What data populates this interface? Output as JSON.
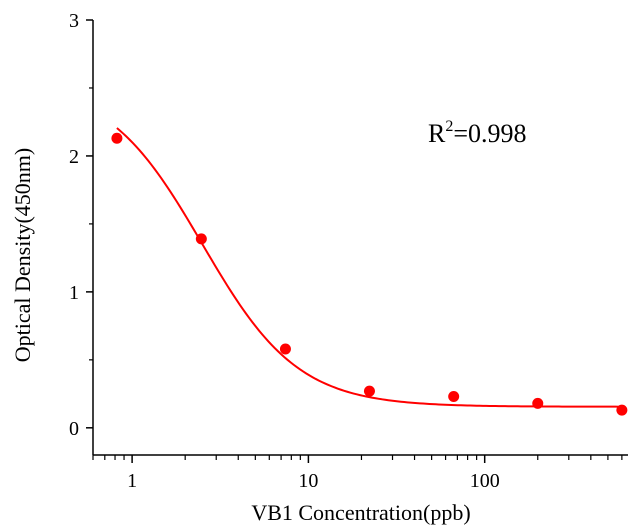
{
  "chart_data": {
    "type": "scatter",
    "title": "",
    "xlabel": "VB1 Concentration(ppb)",
    "ylabel": "Optical Density(450nm)",
    "x_scale": "log",
    "xlim": [
      0.6,
      650
    ],
    "ylim": [
      -0.2,
      3
    ],
    "x_ticks": [
      1,
      10,
      100
    ],
    "x_tick_labels": [
      "1",
      "10",
      "100"
    ],
    "y_ticks": [
      0,
      1,
      2,
      3
    ],
    "y_tick_labels": [
      "0",
      "1",
      "2",
      "3"
    ],
    "grid": false,
    "series": [
      {
        "color": "#ff0000",
        "x": [
          0.82,
          2.47,
          7.41,
          22.2,
          66.7,
          200,
          600
        ],
        "y": [
          2.13,
          1.39,
          0.58,
          0.27,
          0.23,
          0.18,
          0.13
        ]
      }
    ],
    "fit_curve": {
      "model": "four-parameter logistic",
      "color": "#ff0000",
      "top": 2.55,
      "bottom": 0.155,
      "ec50": 2.5,
      "hill_slope": 1.6
    },
    "annotation": {
      "prefix": "R",
      "superscript": "2",
      "suffix": "=0.998"
    }
  }
}
